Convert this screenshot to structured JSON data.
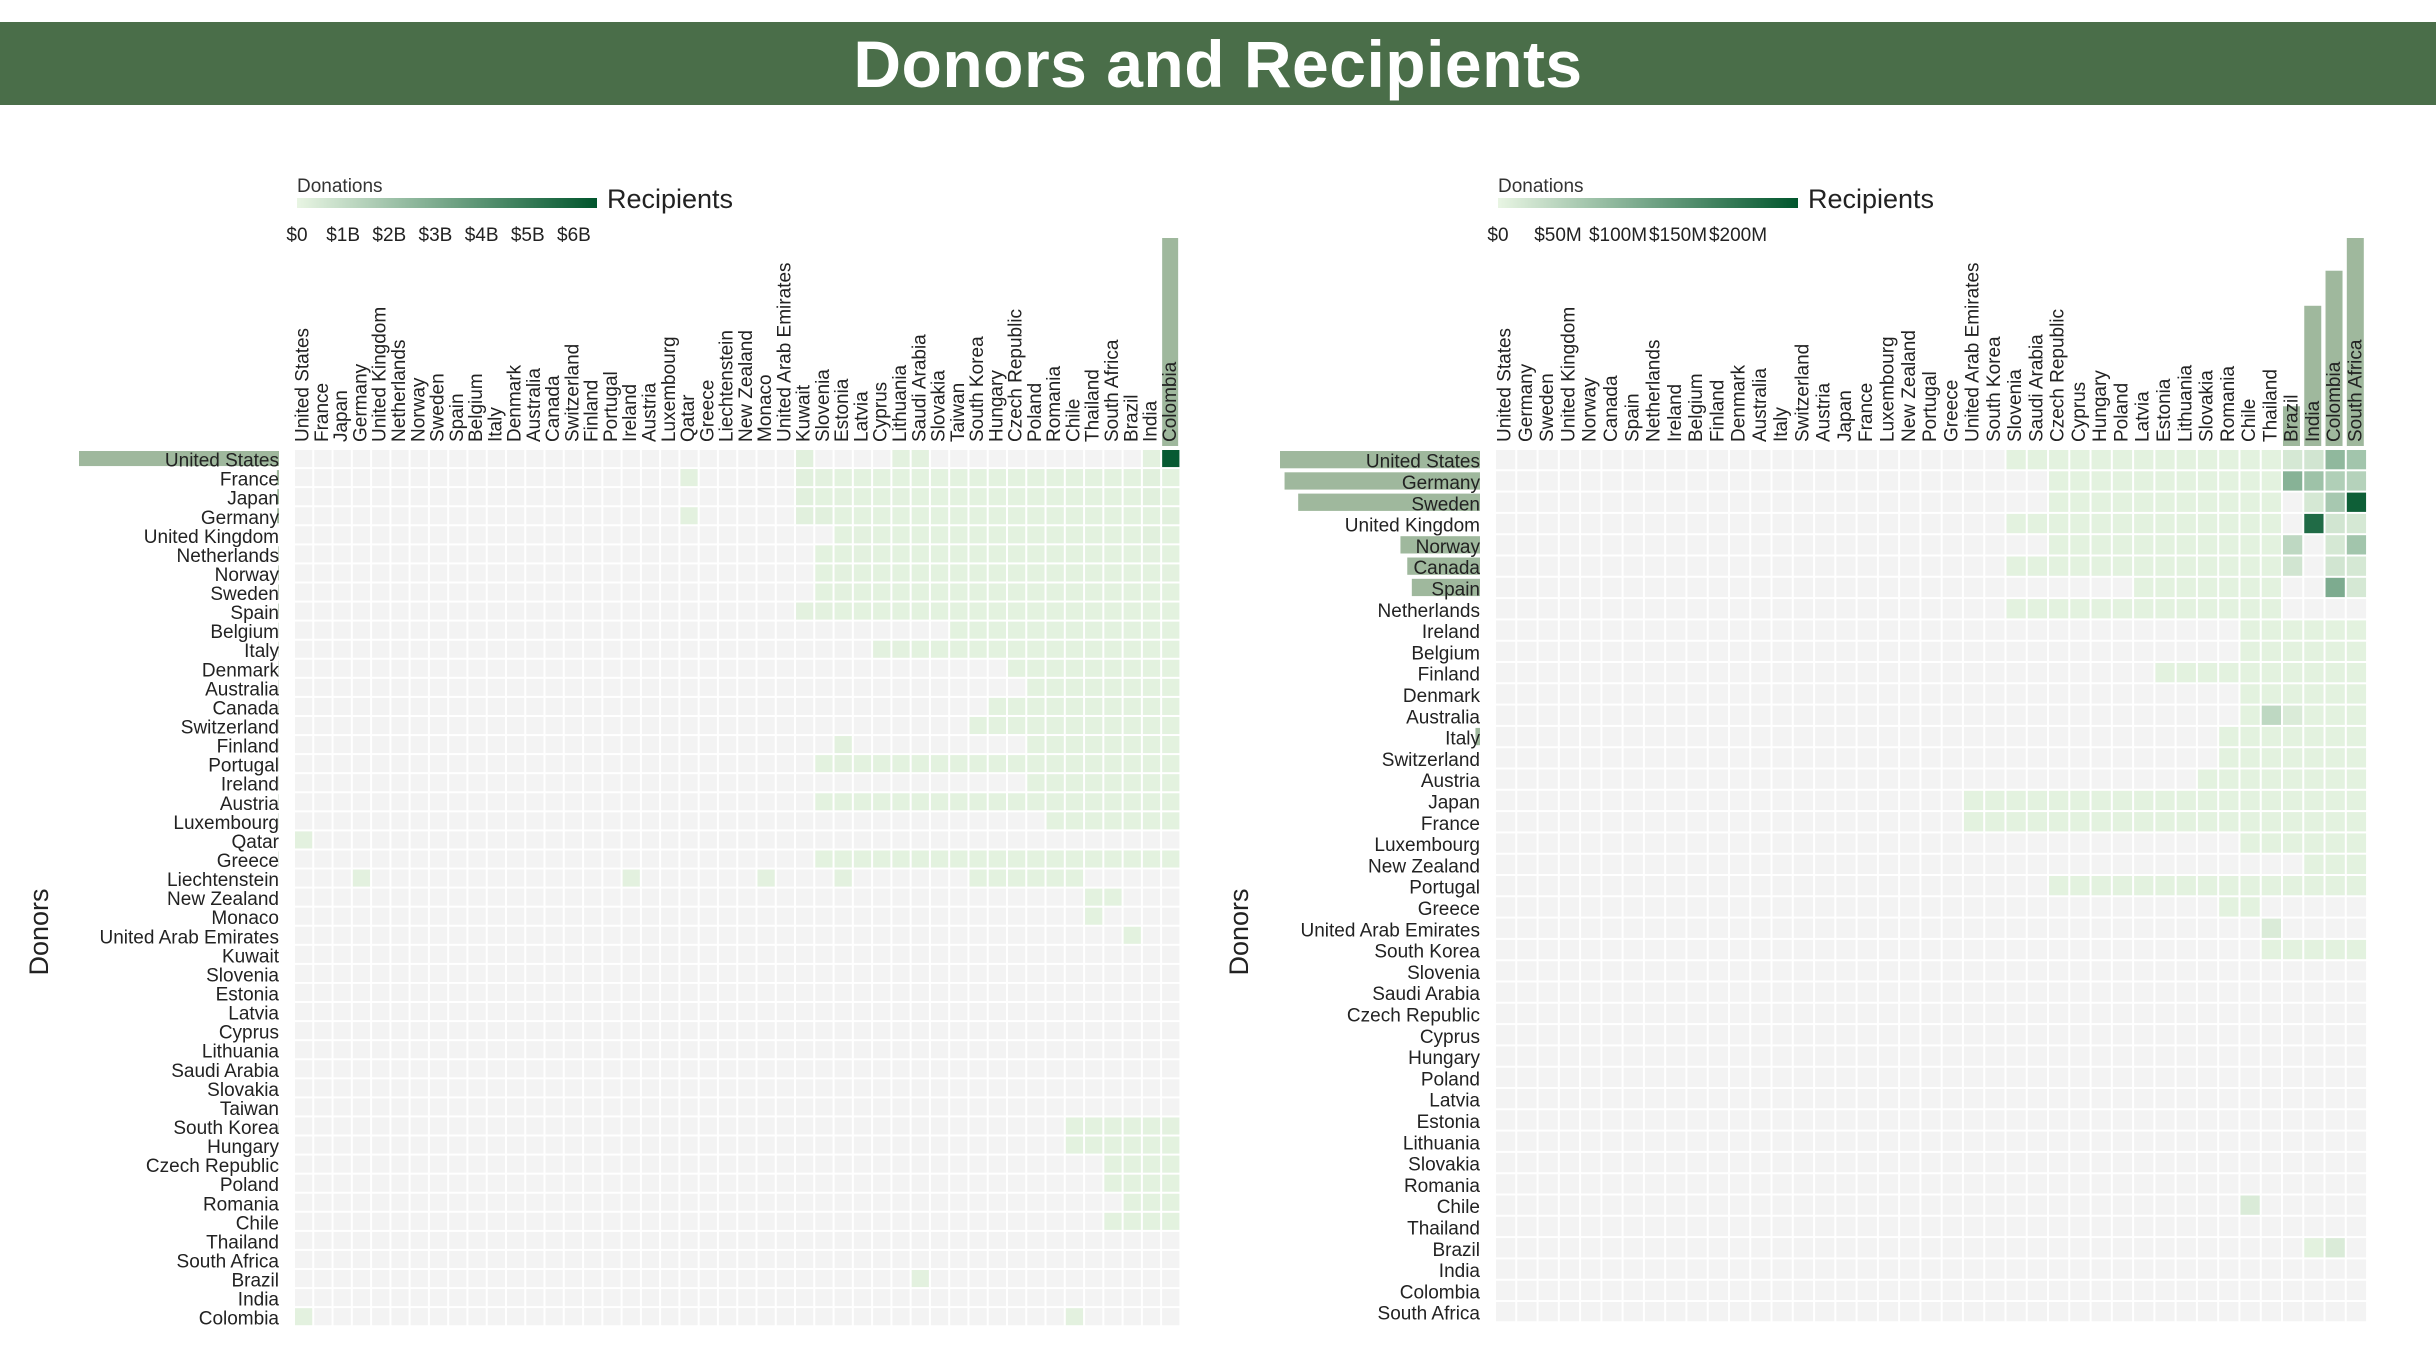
{
  "page_title": "Donors and Recipients",
  "colors": {
    "banner": "#4a6e49",
    "scale_low": "#e8f5e3",
    "scale_high": "#00552c",
    "empty_cell": "#f3f3f3",
    "margin_bar": "#9fb89d"
  },
  "chart_data": [
    {
      "type": "heatmap",
      "recipients_label": "Recipients",
      "donors_label": "Donors",
      "legend_title": "Donations",
      "legend_ticks": [
        "$0",
        "$1B",
        "$2B",
        "$3B",
        "$4B",
        "$5B",
        "$6B"
      ],
      "legend_max": 6.5,
      "units": "B",
      "recipients": [
        "United States",
        "France",
        "Japan",
        "Germany",
        "United Kingdom",
        "Netherlands",
        "Norway",
        "Sweden",
        "Spain",
        "Belgium",
        "Italy",
        "Denmark",
        "Australia",
        "Canada",
        "Switzerland",
        "Finland",
        "Portugal",
        "Ireland",
        "Austria",
        "Luxembourg",
        "Qatar",
        "Greece",
        "Liechtenstein",
        "New Zealand",
        "Monaco",
        "United Arab Emirates",
        "Kuwait",
        "Slovenia",
        "Estonia",
        "Latvia",
        "Cyprus",
        "Lithuania",
        "Saudi Arabia",
        "Slovakia",
        "Taiwan",
        "South Korea",
        "Hungary",
        "Czech Republic",
        "Poland",
        "Romania",
        "Chile",
        "Thailand",
        "South Africa",
        "Brazil",
        "India",
        "Colombia"
      ],
      "donors": [
        "United States",
        "France",
        "Japan",
        "Germany",
        "United Kingdom",
        "Netherlands",
        "Norway",
        "Sweden",
        "Spain",
        "Belgium",
        "Italy",
        "Denmark",
        "Australia",
        "Canada",
        "Switzerland",
        "Finland",
        "Portugal",
        "Ireland",
        "Austria",
        "Luxembourg",
        "Qatar",
        "Greece",
        "Liechtenstein",
        "New Zealand",
        "Monaco",
        "United Arab Emirates",
        "Kuwait",
        "Slovenia",
        "Estonia",
        "Latvia",
        "Cyprus",
        "Lithuania",
        "Saudi Arabia",
        "Slovakia",
        "Taiwan",
        "South Korea",
        "Hungary",
        "Czech Republic",
        "Poland",
        "Romania",
        "Chile",
        "Thailand",
        "South Africa",
        "Brazil",
        "India",
        "Colombia"
      ],
      "donor_totals": [
        6.6,
        0.07,
        0.06,
        0.06,
        0,
        0.02,
        0.02,
        0.02,
        0.02,
        0.01,
        0.01,
        0.01,
        0.01,
        0.01,
        0.01,
        0.01,
        0.01,
        0.01,
        0.01,
        0.01,
        0,
        0.01,
        0,
        0,
        0,
        0,
        0,
        0,
        0,
        0,
        0,
        0,
        0,
        0,
        0,
        0.01,
        0,
        0,
        0,
        0,
        0,
        0,
        0,
        0,
        0,
        0
      ],
      "recipient_totals": [
        0,
        0,
        0,
        0,
        0,
        0,
        0,
        0,
        0,
        0,
        0,
        0,
        0,
        0,
        0,
        0,
        0,
        0,
        0,
        0,
        0,
        0,
        0,
        0,
        0,
        0,
        0,
        0,
        0,
        0,
        0,
        0,
        0,
        0,
        0,
        0,
        0,
        0,
        0,
        0,
        0,
        0,
        0,
        0,
        0,
        6.6
      ],
      "cells": [
        {
          "donor": "United States",
          "recipient": "Colombia",
          "value": 6.3
        },
        {
          "donor": "United States",
          "recipient": "Kuwait",
          "value": 0.2
        },
        {
          "donor": "United States",
          "recipient": "Lithuania",
          "value": 0.15
        },
        {
          "donor": "United States",
          "recipient": "Saudi Arabia",
          "value": 0.15
        },
        {
          "donor": "United States",
          "recipient": "India",
          "value": 0.15
        },
        {
          "donor": "France",
          "recipient": "Qatar",
          "value": 0.15
        },
        {
          "donor": "France",
          "recipient": "Kuwait",
          "value": 0.2
        },
        {
          "donor": "France",
          "recipient": "Slovenia",
          "value": 0.15
        },
        {
          "donor": "France",
          "recipient": "India",
          "value": 0.2
        },
        {
          "donor": "Japan",
          "recipient": "Kuwait",
          "value": 0.2
        },
        {
          "donor": "Japan",
          "recipient": "Estonia",
          "value": 0.15
        },
        {
          "donor": "Japan",
          "recipient": "Lithuania",
          "value": 0.15
        },
        {
          "donor": "Japan",
          "recipient": "India",
          "value": 0.2
        },
        {
          "donor": "Germany",
          "recipient": "Qatar",
          "value": 0.15
        },
        {
          "donor": "Germany",
          "recipient": "Kuwait",
          "value": 0.2
        },
        {
          "donor": "Germany",
          "recipient": "Slovenia",
          "value": 0.2
        },
        {
          "donor": "Germany",
          "recipient": "Colombia",
          "value": 0.2
        },
        {
          "donor": "United Kingdom",
          "recipient": "Latvia",
          "value": 0.15
        },
        {
          "donor": "United Kingdom",
          "recipient": "India",
          "value": 0.2
        },
        {
          "donor": "Netherlands",
          "recipient": "Latvia",
          "value": 0.15
        },
        {
          "donor": "Netherlands",
          "recipient": "India",
          "value": 0.15
        },
        {
          "donor": "Norway",
          "recipient": "Estonia",
          "value": 0.15
        },
        {
          "donor": "Norway",
          "recipient": "Colombia",
          "value": 0.15
        },
        {
          "donor": "Sweden",
          "recipient": "Estonia",
          "value": 0.15
        },
        {
          "donor": "Spain",
          "recipient": "Kuwait",
          "value": 0.15
        },
        {
          "donor": "Spain",
          "recipient": "Slovenia",
          "value": 0.15
        },
        {
          "donor": "Italy",
          "recipient": "Cyprus",
          "value": 0.15
        },
        {
          "donor": "Italy",
          "recipient": "Lithuania",
          "value": 0.15
        },
        {
          "donor": "Finland",
          "recipient": "Estonia",
          "value": 0.15
        },
        {
          "donor": "Portugal",
          "recipient": "Estonia",
          "value": 0.15
        },
        {
          "donor": "Qatar",
          "recipient": "United States",
          "value": 0.15
        },
        {
          "donor": "Liechtenstein",
          "recipient": "Germany",
          "value": 0.15
        },
        {
          "donor": "Liechtenstein",
          "recipient": "Ireland",
          "value": 0.15
        },
        {
          "donor": "Liechtenstein",
          "recipient": "Monaco",
          "value": 0.15
        },
        {
          "donor": "Liechtenstein",
          "recipient": "Estonia",
          "value": 0.15
        },
        {
          "donor": "South Korea",
          "recipient": "Colombia",
          "value": 0.15
        },
        {
          "donor": "Brazil",
          "recipient": "Saudi Arabia",
          "value": 0.15
        },
        {
          "donor": "Colombia",
          "recipient": "United States",
          "value": 0.15
        },
        {
          "donor": "Colombia",
          "recipient": "Chile",
          "value": 0.15
        }
      ],
      "light_ranges": [
        [
          1,
          26,
          45
        ],
        [
          2,
          26,
          45
        ],
        [
          3,
          26,
          45
        ],
        [
          4,
          28,
          45
        ],
        [
          5,
          27,
          45
        ],
        [
          6,
          27,
          45
        ],
        [
          7,
          27,
          45
        ],
        [
          8,
          26,
          45
        ],
        [
          9,
          34,
          45
        ],
        [
          10,
          30,
          45
        ],
        [
          11,
          37,
          45
        ],
        [
          12,
          38,
          45
        ],
        [
          13,
          36,
          45
        ],
        [
          14,
          35,
          45
        ],
        [
          15,
          38,
          45
        ],
        [
          16,
          27,
          45
        ],
        [
          17,
          38,
          45
        ],
        [
          18,
          27,
          45
        ],
        [
          19,
          39,
          45
        ],
        [
          21,
          27,
          45
        ],
        [
          22,
          35,
          40
        ],
        [
          23,
          41,
          42
        ],
        [
          24,
          41,
          41
        ],
        [
          25,
          43,
          43
        ],
        [
          35,
          40,
          45
        ],
        [
          36,
          40,
          45
        ],
        [
          37,
          42,
          45
        ],
        [
          38,
          42,
          45
        ],
        [
          39,
          43,
          45
        ],
        [
          40,
          42,
          45
        ]
      ]
    },
    {
      "type": "heatmap",
      "recipients_label": "Recipients",
      "donors_label": "Donors",
      "legend_title": "Donations",
      "legend_ticks": [
        "$0",
        "$50M",
        "$100M",
        "$150M",
        "$200M"
      ],
      "legend_max": 250,
      "units": "M",
      "recipients": [
        "United States",
        "Germany",
        "Sweden",
        "United Kingdom",
        "Norway",
        "Canada",
        "Spain",
        "Netherlands",
        "Ireland",
        "Belgium",
        "Finland",
        "Denmark",
        "Australia",
        "Italy",
        "Switzerland",
        "Austria",
        "Japan",
        "France",
        "Luxembourg",
        "New Zealand",
        "Portugal",
        "Greece",
        "United Arab Emirates",
        "South Korea",
        "Slovenia",
        "Saudi Arabia",
        "Czech Republic",
        "Cyprus",
        "Hungary",
        "Poland",
        "Latvia",
        "Estonia",
        "Lithuania",
        "Slovakia",
        "Romania",
        "Chile",
        "Thailand",
        "Brazil",
        "India",
        "Colombia",
        "South Africa"
      ],
      "donors": [
        "United States",
        "Germany",
        "Sweden",
        "United Kingdom",
        "Norway",
        "Canada",
        "Spain",
        "Netherlands",
        "Ireland",
        "Belgium",
        "Finland",
        "Denmark",
        "Australia",
        "Italy",
        "Switzerland",
        "Austria",
        "Japan",
        "France",
        "Luxembourg",
        "New Zealand",
        "Portugal",
        "Greece",
        "United Arab Emirates",
        "South Korea",
        "Slovenia",
        "Saudi Arabia",
        "Czech Republic",
        "Cyprus",
        "Hungary",
        "Poland",
        "Latvia",
        "Estonia",
        "Lithuania",
        "Slovakia",
        "Romania",
        "Chile",
        "Thailand",
        "Brazil",
        "India",
        "Colombia",
        "South Africa"
      ],
      "donor_totals": [
        440,
        430,
        400,
        0,
        175,
        160,
        150,
        0,
        0,
        0,
        0,
        0,
        0,
        10,
        0,
        0,
        0,
        0,
        0,
        0,
        0,
        0,
        0,
        0,
        0,
        0,
        0,
        0,
        0,
        0,
        0,
        0,
        0,
        0,
        0,
        0,
        0,
        0,
        0,
        0,
        0
      ],
      "recipient_totals": [
        0,
        0,
        0,
        0,
        0,
        0,
        0,
        0,
        0,
        0,
        0,
        0,
        0,
        0,
        0,
        0,
        0,
        0,
        0,
        0,
        0,
        0,
        0,
        0,
        0,
        0,
        0,
        0,
        0,
        0,
        0,
        0,
        0,
        0,
        0,
        0,
        0,
        85,
        300,
        375,
        445
      ],
      "cells": [
        {
          "donor": "United States",
          "recipient": "Colombia",
          "value": 95
        },
        {
          "donor": "United States",
          "recipient": "South Africa",
          "value": 75
        },
        {
          "donor": "United States",
          "recipient": "India",
          "value": 25
        },
        {
          "donor": "United States",
          "recipient": "Brazil",
          "value": 20
        },
        {
          "donor": "Germany",
          "recipient": "Brazil",
          "value": 105
        },
        {
          "donor": "Germany",
          "recipient": "India",
          "value": 80
        },
        {
          "donor": "Germany",
          "recipient": "Colombia",
          "value": 60
        },
        {
          "donor": "Germany",
          "recipient": "South Africa",
          "value": 55
        },
        {
          "donor": "Sweden",
          "recipient": "South Africa",
          "value": 235
        },
        {
          "donor": "Sweden",
          "recipient": "Colombia",
          "value": 70
        },
        {
          "donor": "Sweden",
          "recipient": "India",
          "value": 20
        },
        {
          "donor": "United Kingdom",
          "recipient": "India",
          "value": 215
        },
        {
          "donor": "United Kingdom",
          "recipient": "Colombia",
          "value": 25
        },
        {
          "donor": "United Kingdom",
          "recipient": "South Africa",
          "value": 20
        },
        {
          "donor": "Norway",
          "recipient": "Brazil",
          "value": 45
        },
        {
          "donor": "Norway",
          "recipient": "South Africa",
          "value": 75
        },
        {
          "donor": "Norway",
          "recipient": "Colombia",
          "value": 20
        },
        {
          "donor": "Canada",
          "recipient": "Brazil",
          "value": 25
        },
        {
          "donor": "Canada",
          "recipient": "Colombia",
          "value": 25
        },
        {
          "donor": "Canada",
          "recipient": "South Africa",
          "value": 20
        },
        {
          "donor": "Spain",
          "recipient": "Colombia",
          "value": 115
        },
        {
          "donor": "Spain",
          "recipient": "South Africa",
          "value": 20
        },
        {
          "donor": "Australia",
          "recipient": "Thailand",
          "value": 45
        },
        {
          "donor": "Australia",
          "recipient": "Brazil",
          "value": 15
        },
        {
          "donor": "United Arab Emirates",
          "recipient": "Thailand",
          "value": 15
        },
        {
          "donor": "Chile",
          "recipient": "Chile",
          "value": 15
        },
        {
          "donor": "Brazil",
          "recipient": "Colombia",
          "value": 15
        }
      ],
      "light_ranges": [
        [
          0,
          24,
          36
        ],
        [
          1,
          26,
          36
        ],
        [
          2,
          26,
          36
        ],
        [
          3,
          24,
          36
        ],
        [
          4,
          26,
          36
        ],
        [
          5,
          24,
          36
        ],
        [
          6,
          30,
          36
        ],
        [
          7,
          24,
          36
        ],
        [
          8,
          35,
          40
        ],
        [
          9,
          35,
          40
        ],
        [
          10,
          31,
          40
        ],
        [
          11,
          35,
          40
        ],
        [
          12,
          35,
          40
        ],
        [
          13,
          34,
          40
        ],
        [
          14,
          34,
          40
        ],
        [
          15,
          33,
          40
        ],
        [
          16,
          22,
          40
        ],
        [
          17,
          22,
          40
        ],
        [
          18,
          35,
          40
        ],
        [
          19,
          38,
          40
        ],
        [
          20,
          26,
          40
        ],
        [
          21,
          34,
          35
        ],
        [
          22,
          36,
          36
        ],
        [
          23,
          36,
          40
        ],
        [
          35,
          35,
          35
        ],
        [
          37,
          38,
          38
        ]
      ]
    }
  ]
}
